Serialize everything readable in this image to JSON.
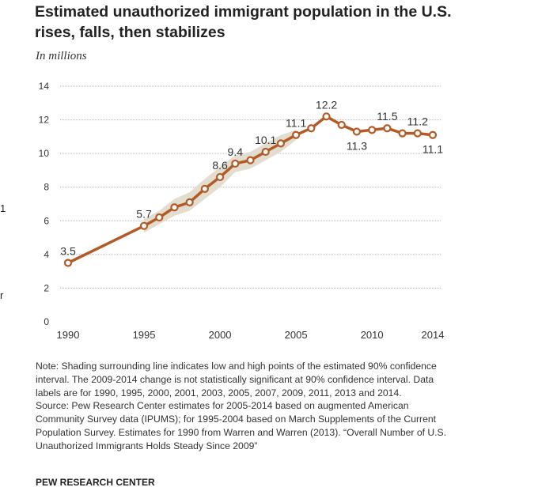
{
  "title": "Estimated unauthorized immigrant population in the U.S. rises, falls, then stabilizes",
  "subtitle": "In millions",
  "notes": {
    "note": "Note: Shading surrounding line indicates low and high points of the estimated 90% confidence interval. The 2009-2014 change is not statistically significant at 90% confidence interval. Data labels are for 1990, 1995, 2000, 2001, 2003, 2005, 2007, 2009, 2011, 2013 and 2014.",
    "source": "Source: Pew Research Center estimates for 2005-2014 based on augmented American Community Survey data (IPUMS); for 1995-2004 based on March Supplements of the Current Population Survey. Estimates for 1990 from Warren and Warren (2013). “Overall Number of U.S. Unauthorized Immigrants Holds Steady Since 2009”"
  },
  "brand": "PEW RESEARCH CENTER",
  "edge_glyphs": [
    "1",
    "r"
  ],
  "colors": {
    "line": "#b35a26",
    "band": "#e2ddcf",
    "grid": "#b8b8b8",
    "marker_fill": "#ffffff"
  },
  "chart_data": {
    "type": "line",
    "title": "Estimated unauthorized immigrant population in the U.S. rises, falls, then stabilizes",
    "ylabel": "In millions",
    "xlabel": "",
    "ylim": [
      0,
      14
    ],
    "xlim": [
      1990,
      2014
    ],
    "yticks": [
      0,
      2,
      4,
      6,
      8,
      10,
      12,
      14
    ],
    "xticks": [
      1990,
      1995,
      2000,
      2005,
      2010,
      2014
    ],
    "series": [
      {
        "name": "Unauthorized immigrant population",
        "x": [
          1990,
          1995,
          1996,
          1997,
          1998,
          1999,
          2000,
          2001,
          2002,
          2003,
          2004,
          2005,
          2006,
          2007,
          2008,
          2009,
          2010,
          2011,
          2012,
          2013,
          2014
        ],
        "values": [
          3.5,
          5.7,
          6.2,
          6.8,
          7.1,
          7.9,
          8.6,
          9.4,
          9.6,
          10.1,
          10.6,
          11.1,
          11.5,
          12.2,
          11.7,
          11.3,
          11.4,
          11.5,
          11.2,
          11.2,
          11.1
        ]
      }
    ],
    "confidence_band": {
      "x": [
        1995,
        1996,
        1997,
        1998,
        1999,
        2000,
        2001,
        2002,
        2003,
        2004,
        2005
      ],
      "low": [
        5.3,
        5.8,
        6.3,
        6.6,
        7.3,
        8.0,
        8.9,
        9.1,
        9.6,
        10.1,
        10.8
      ],
      "high": [
        6.1,
        6.6,
        7.3,
        7.7,
        8.5,
        9.2,
        9.9,
        10.1,
        10.6,
        11.1,
        11.4
      ]
    },
    "data_labels": [
      {
        "x": 1990,
        "label": "3.5",
        "pos": "above"
      },
      {
        "x": 1995,
        "label": "5.7",
        "pos": "above"
      },
      {
        "x": 2000,
        "label": "8.6",
        "pos": "above"
      },
      {
        "x": 2001,
        "label": "9.4",
        "pos": "above"
      },
      {
        "x": 2003,
        "label": "10.1",
        "pos": "above"
      },
      {
        "x": 2005,
        "label": "11.1",
        "pos": "above"
      },
      {
        "x": 2007,
        "label": "12.2",
        "pos": "above"
      },
      {
        "x": 2009,
        "label": "11.3",
        "pos": "below"
      },
      {
        "x": 2011,
        "label": "11.5",
        "pos": "above"
      },
      {
        "x": 2013,
        "label": "11.2",
        "pos": "above"
      },
      {
        "x": 2014,
        "label": "11.1",
        "pos": "below"
      }
    ]
  }
}
